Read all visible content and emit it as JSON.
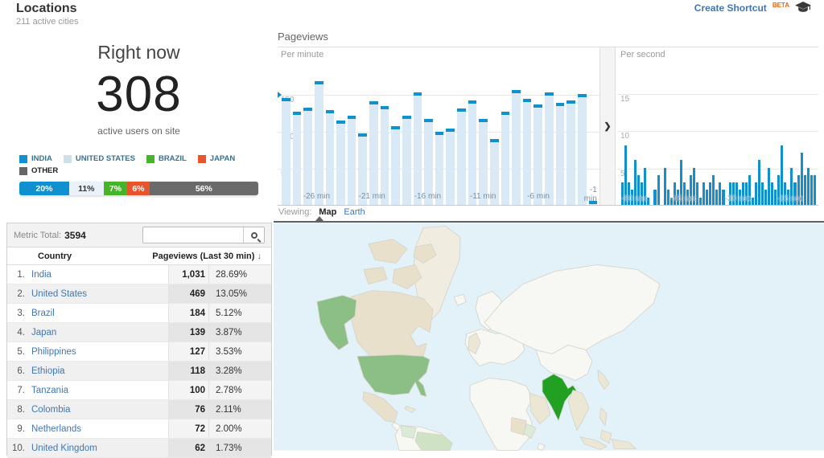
{
  "colors": {
    "blue": "#1190cf",
    "lightbar": "#d9eaf6",
    "link": "#3f76b3",
    "beta": "#e8650d",
    "map": {
      "ocean": "#e3f1f8",
      "land": "#f7f7f3",
      "border": "#d3d2c8",
      "tan": "#e8e0cb",
      "paletan": "#ece6d4",
      "green_med": "#8cbf85",
      "green_dark": "#21a021",
      "green_light": "#cfe3c4",
      "green_pale": "#dcead8"
    }
  },
  "header": {
    "title": "Locations",
    "subtitle": "211 active cities",
    "create_shortcut": "Create Shortcut",
    "beta": "BETA"
  },
  "right_now": {
    "label": "Right now",
    "value": "308",
    "sublabel": "active users on site"
  },
  "legend": {
    "items": [
      {
        "label": "INDIA",
        "color": "#1190cf"
      },
      {
        "label": "UNITED STATES",
        "color": "#cfe0eb"
      },
      {
        "label": "BRAZIL",
        "color": "#47b32a"
      },
      {
        "label": "JAPAN",
        "color": "#e8542c"
      },
      {
        "label": "OTHER",
        "color": "#666666"
      }
    ],
    "share_bar": [
      {
        "label": "20%",
        "value": 20,
        "color": "#1190cf",
        "text_color": "#ffffff"
      },
      {
        "label": "11%",
        "value": 11,
        "color": "#e9f2f8",
        "text_color": "#333333"
      },
      {
        "label": "7%",
        "value": 7,
        "color": "#47b32a",
        "text_color": "#ffffff"
      },
      {
        "label": "6%",
        "value": 6,
        "color": "#e8542c",
        "text_color": "#ffffff"
      },
      {
        "label": "56%",
        "value": 56,
        "color": "#6a6a6a",
        "text_color": "#ffffff"
      }
    ]
  },
  "pageviews": {
    "title": "Pageviews",
    "expand_icon": "❯"
  },
  "chart_data": [
    {
      "type": "bar",
      "title": "Pageviews",
      "subtitle": "Per minute",
      "ylim": [
        0,
        210
      ],
      "yticks": [
        150,
        100,
        50
      ],
      "grid": true,
      "values": [
        145,
        126,
        131,
        167,
        128,
        114,
        121,
        97,
        140,
        134,
        107,
        121,
        152,
        116,
        99,
        103,
        130,
        141,
        116,
        89,
        126,
        155,
        143,
        136,
        152,
        138,
        141,
        150,
        5
      ],
      "x_labels": [
        {
          "text": "-26 min",
          "pos": 12.1
        },
        {
          "text": "-21 min",
          "pos": 29.3
        },
        {
          "text": "-16 min",
          "pos": 46.6
        },
        {
          "text": "-11 min",
          "pos": 63.8
        },
        {
          "text": "-6 min",
          "pos": 81.0
        },
        {
          "text": "-1 min",
          "pos": 98.3,
          "wrap": true
        }
      ]
    },
    {
      "type": "bar",
      "title": "Pageviews",
      "subtitle": "Per second",
      "ylim": [
        0,
        21
      ],
      "yticks": [
        15,
        10,
        5
      ],
      "grid": true,
      "values": [
        3,
        8,
        3,
        2,
        6,
        4,
        3,
        5,
        1,
        0,
        2,
        4,
        0,
        5,
        2,
        1,
        3,
        2,
        6,
        3,
        2,
        4,
        5,
        3,
        1,
        3,
        2,
        3,
        4,
        2,
        3,
        2,
        0,
        3,
        3,
        3,
        2,
        3,
        3,
        4,
        1,
        3,
        6,
        3,
        2,
        5,
        3,
        2,
        4,
        8,
        3,
        2,
        5,
        3,
        4,
        7,
        4,
        5,
        4,
        4
      ],
      "x_labels": [
        {
          "text": "-60 sec",
          "pos": 2,
          "leftalign": true
        },
        {
          "text": "-45 sec",
          "pos": 33
        },
        {
          "text": "-30 sec",
          "pos": 60
        },
        {
          "text": "-15 sec",
          "pos": 86
        }
      ]
    }
  ],
  "table": {
    "metric_total_label": "Metric Total:",
    "metric_total_value": "3594",
    "search_placeholder": "",
    "columns": {
      "country": "Country",
      "views": "Pageviews (Last 30 min)",
      "sort_icon": "↓"
    },
    "rows": [
      {
        "rank": "1.",
        "country": "India",
        "views": "1,031",
        "pct": "28.69%"
      },
      {
        "rank": "2.",
        "country": "United States",
        "views": "469",
        "pct": "13.05%"
      },
      {
        "rank": "3.",
        "country": "Brazil",
        "views": "184",
        "pct": "5.12%"
      },
      {
        "rank": "4.",
        "country": "Japan",
        "views": "139",
        "pct": "3.87%"
      },
      {
        "rank": "5.",
        "country": "Philippines",
        "views": "127",
        "pct": "3.53%"
      },
      {
        "rank": "6.",
        "country": "Ethiopia",
        "views": "118",
        "pct": "3.28%"
      },
      {
        "rank": "7.",
        "country": "Tanzania",
        "views": "100",
        "pct": "2.78%"
      },
      {
        "rank": "8.",
        "country": "Colombia",
        "views": "76",
        "pct": "2.11%"
      },
      {
        "rank": "9.",
        "country": "Netherlands",
        "views": "72",
        "pct": "2.00%"
      },
      {
        "rank": "10.",
        "country": "United Kingdom",
        "views": "62",
        "pct": "1.73%"
      }
    ]
  },
  "viewing": {
    "label": "Viewing:",
    "map": "Map",
    "earth": "Earth"
  }
}
